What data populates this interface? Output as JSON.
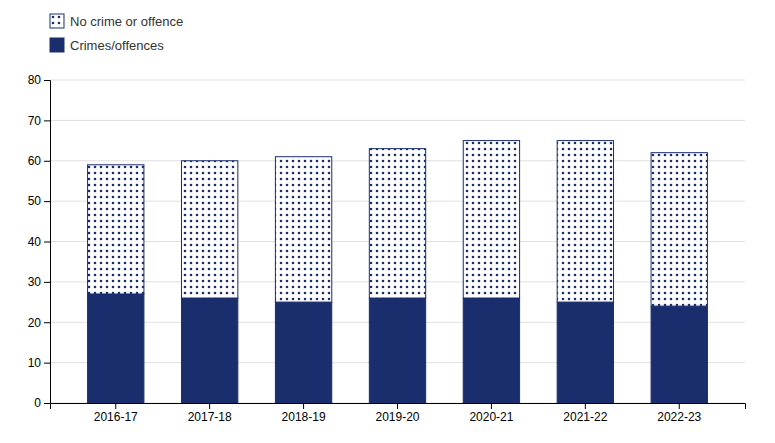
{
  "chart_data": {
    "type": "bar",
    "stacked": true,
    "categories": [
      "2016-17",
      "2017-18",
      "2018-19",
      "2019-20",
      "2020-21",
      "2021-22",
      "2022-23"
    ],
    "series": [
      {
        "name": "Crimes/offences",
        "color": "#1a2e6e",
        "values": [
          27,
          26,
          25,
          26,
          26,
          25,
          24
        ]
      },
      {
        "name": "No crime or offence",
        "color": "#1a2e6e",
        "values": [
          32,
          34,
          36,
          37,
          39,
          40,
          38
        ]
      }
    ],
    "ylim": [
      0,
      80
    ],
    "yticks": [
      0,
      10,
      20,
      30,
      40,
      50,
      60,
      70,
      80
    ],
    "grid": true,
    "legend": "top"
  }
}
